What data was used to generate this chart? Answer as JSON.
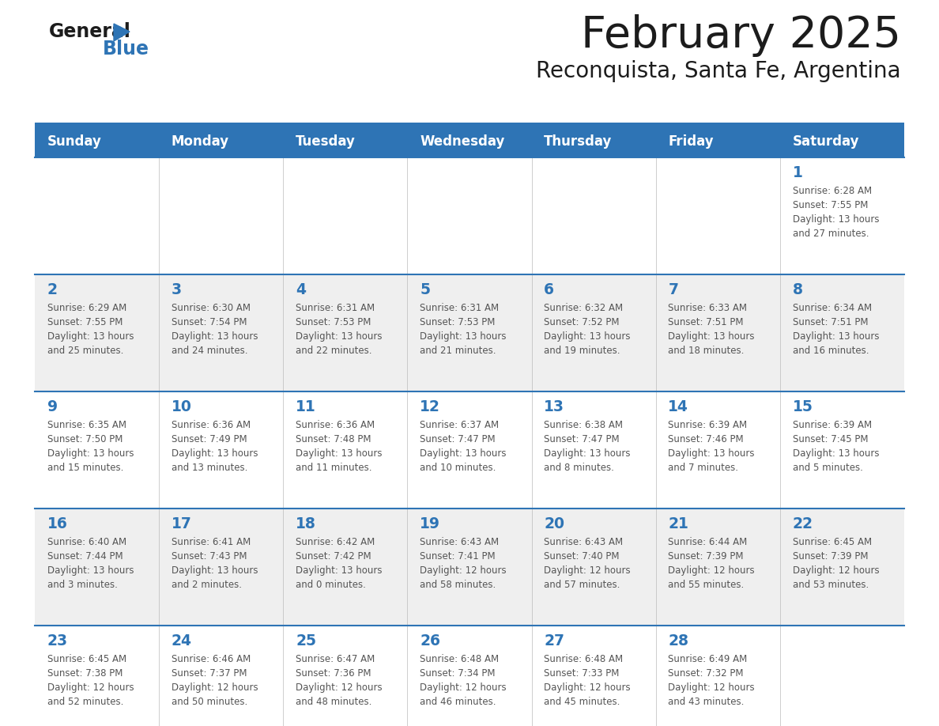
{
  "title": "February 2025",
  "subtitle": "Reconquista, Santa Fe, Argentina",
  "header_bg": "#2E74B5",
  "header_text_color": "#FFFFFF",
  "cell_bg_week1": "#FFFFFF",
  "cell_bg_week2": "#EFEFEF",
  "day_num_color": "#2E74B5",
  "info_text_color": "#555555",
  "border_color": "#2E74B5",
  "days_of_week": [
    "Sunday",
    "Monday",
    "Tuesday",
    "Wednesday",
    "Thursday",
    "Friday",
    "Saturday"
  ],
  "weeks": [
    {
      "bg": "#FFFFFF",
      "days": [
        {
          "day": null,
          "sunrise": null,
          "sunset": null,
          "daylight": null
        },
        {
          "day": null,
          "sunrise": null,
          "sunset": null,
          "daylight": null
        },
        {
          "day": null,
          "sunrise": null,
          "sunset": null,
          "daylight": null
        },
        {
          "day": null,
          "sunrise": null,
          "sunset": null,
          "daylight": null
        },
        {
          "day": null,
          "sunrise": null,
          "sunset": null,
          "daylight": null
        },
        {
          "day": null,
          "sunrise": null,
          "sunset": null,
          "daylight": null
        },
        {
          "day": 1,
          "sunrise": "6:28 AM",
          "sunset": "7:55 PM",
          "daylight": "13 hours and 27 minutes"
        }
      ]
    },
    {
      "bg": "#EFEFEF",
      "days": [
        {
          "day": 2,
          "sunrise": "6:29 AM",
          "sunset": "7:55 PM",
          "daylight": "13 hours and 25 minutes"
        },
        {
          "day": 3,
          "sunrise": "6:30 AM",
          "sunset": "7:54 PM",
          "daylight": "13 hours and 24 minutes"
        },
        {
          "day": 4,
          "sunrise": "6:31 AM",
          "sunset": "7:53 PM",
          "daylight": "13 hours and 22 minutes"
        },
        {
          "day": 5,
          "sunrise": "6:31 AM",
          "sunset": "7:53 PM",
          "daylight": "13 hours and 21 minutes"
        },
        {
          "day": 6,
          "sunrise": "6:32 AM",
          "sunset": "7:52 PM",
          "daylight": "13 hours and 19 minutes"
        },
        {
          "day": 7,
          "sunrise": "6:33 AM",
          "sunset": "7:51 PM",
          "daylight": "13 hours and 18 minutes"
        },
        {
          "day": 8,
          "sunrise": "6:34 AM",
          "sunset": "7:51 PM",
          "daylight": "13 hours and 16 minutes"
        }
      ]
    },
    {
      "bg": "#FFFFFF",
      "days": [
        {
          "day": 9,
          "sunrise": "6:35 AM",
          "sunset": "7:50 PM",
          "daylight": "13 hours and 15 minutes"
        },
        {
          "day": 10,
          "sunrise": "6:36 AM",
          "sunset": "7:49 PM",
          "daylight": "13 hours and 13 minutes"
        },
        {
          "day": 11,
          "sunrise": "6:36 AM",
          "sunset": "7:48 PM",
          "daylight": "13 hours and 11 minutes"
        },
        {
          "day": 12,
          "sunrise": "6:37 AM",
          "sunset": "7:47 PM",
          "daylight": "13 hours and 10 minutes"
        },
        {
          "day": 13,
          "sunrise": "6:38 AM",
          "sunset": "7:47 PM",
          "daylight": "13 hours and 8 minutes"
        },
        {
          "day": 14,
          "sunrise": "6:39 AM",
          "sunset": "7:46 PM",
          "daylight": "13 hours and 7 minutes"
        },
        {
          "day": 15,
          "sunrise": "6:39 AM",
          "sunset": "7:45 PM",
          "daylight": "13 hours and 5 minutes"
        }
      ]
    },
    {
      "bg": "#EFEFEF",
      "days": [
        {
          "day": 16,
          "sunrise": "6:40 AM",
          "sunset": "7:44 PM",
          "daylight": "13 hours and 3 minutes"
        },
        {
          "day": 17,
          "sunrise": "6:41 AM",
          "sunset": "7:43 PM",
          "daylight": "13 hours and 2 minutes"
        },
        {
          "day": 18,
          "sunrise": "6:42 AM",
          "sunset": "7:42 PM",
          "daylight": "13 hours and 0 minutes"
        },
        {
          "day": 19,
          "sunrise": "6:43 AM",
          "sunset": "7:41 PM",
          "daylight": "12 hours and 58 minutes"
        },
        {
          "day": 20,
          "sunrise": "6:43 AM",
          "sunset": "7:40 PM",
          "daylight": "12 hours and 57 minutes"
        },
        {
          "day": 21,
          "sunrise": "6:44 AM",
          "sunset": "7:39 PM",
          "daylight": "12 hours and 55 minutes"
        },
        {
          "day": 22,
          "sunrise": "6:45 AM",
          "sunset": "7:39 PM",
          "daylight": "12 hours and 53 minutes"
        }
      ]
    },
    {
      "bg": "#FFFFFF",
      "days": [
        {
          "day": 23,
          "sunrise": "6:45 AM",
          "sunset": "7:38 PM",
          "daylight": "12 hours and 52 minutes"
        },
        {
          "day": 24,
          "sunrise": "6:46 AM",
          "sunset": "7:37 PM",
          "daylight": "12 hours and 50 minutes"
        },
        {
          "day": 25,
          "sunrise": "6:47 AM",
          "sunset": "7:36 PM",
          "daylight": "12 hours and 48 minutes"
        },
        {
          "day": 26,
          "sunrise": "6:48 AM",
          "sunset": "7:34 PM",
          "daylight": "12 hours and 46 minutes"
        },
        {
          "day": 27,
          "sunrise": "6:48 AM",
          "sunset": "7:33 PM",
          "daylight": "12 hours and 45 minutes"
        },
        {
          "day": 28,
          "sunrise": "6:49 AM",
          "sunset": "7:32 PM",
          "daylight": "12 hours and 43 minutes"
        },
        {
          "day": null,
          "sunrise": null,
          "sunset": null,
          "daylight": null
        }
      ]
    }
  ]
}
